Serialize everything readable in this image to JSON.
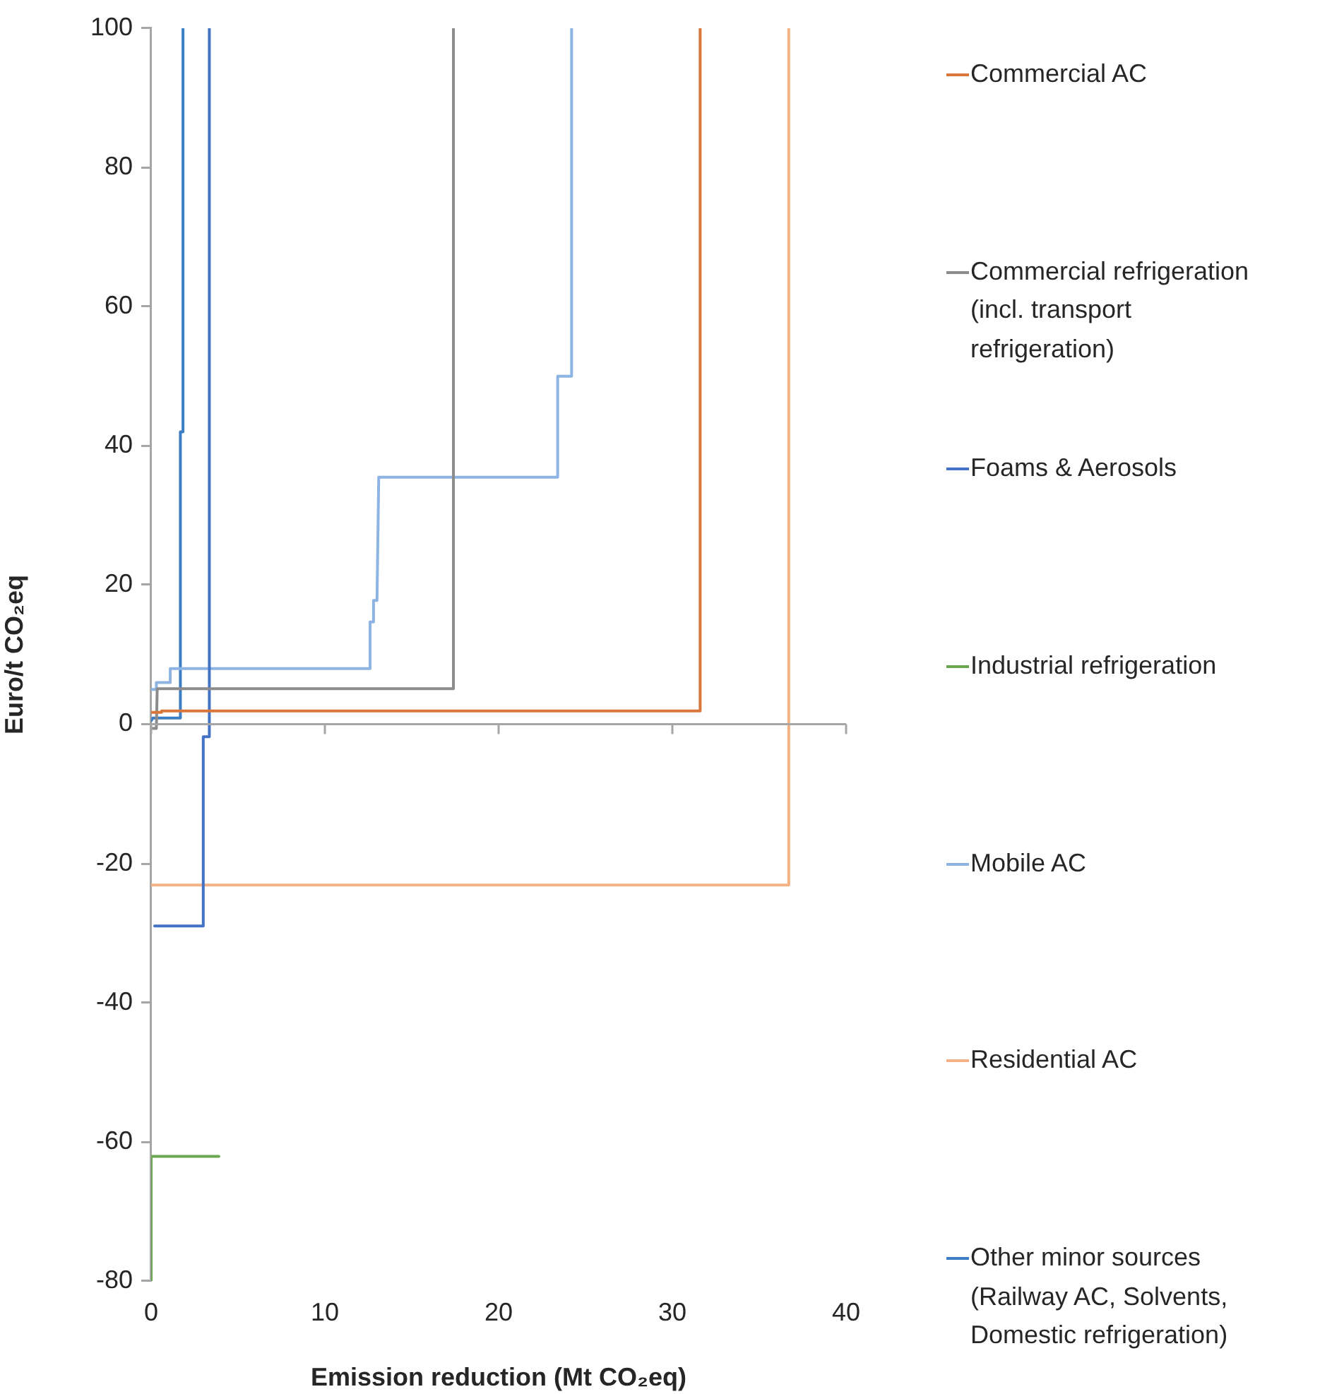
{
  "chart_data": {
    "type": "line",
    "xlabel": "Emission reduction (Mt CO₂eq)",
    "ylabel": "Euro/t CO₂eq",
    "xlim": [
      0,
      40
    ],
    "xticks": [
      0,
      10,
      20,
      30,
      40
    ],
    "ylim": [
      -80,
      100
    ],
    "yticks": [
      -80,
      -60,
      -40,
      -20,
      0,
      20,
      40,
      60,
      80,
      100
    ],
    "legend": "right",
    "series": [
      {
        "name": "Commercial AC",
        "color": "#d9773a",
        "x": [
          0,
          0.6,
          0.6,
          31.6,
          31.6
        ],
        "values": [
          1.7,
          1.7,
          1.9,
          1.9,
          100
        ]
      },
      {
        "name": "Commercial refrigeration (incl. transport refrigeration)",
        "color": "#8c8c8c",
        "x": [
          0,
          0.3,
          0.35,
          17.4,
          17.4
        ],
        "values": [
          -0.6,
          -0.6,
          5.1,
          5.1,
          100
        ]
      },
      {
        "name": "Foams & Aerosols",
        "color": "#4472c4",
        "x": [
          0.2,
          3.0,
          3.0,
          3.35,
          3.35
        ],
        "values": [
          -29,
          -29,
          -1.8,
          -1.8,
          100
        ]
      },
      {
        "name": "Industrial refrigeration",
        "color": "#6aa84f",
        "x": [
          0,
          0,
          3.9
        ],
        "values": [
          -80,
          -62.1,
          -62.1
        ]
      },
      {
        "name": "Mobile AC",
        "color": "#8db4e2",
        "x": [
          0,
          0.3,
          0.3,
          1.1,
          1.1,
          12.6,
          12.6,
          12.8,
          12.8,
          13.0,
          13.1,
          23.4,
          23.4,
          24.2,
          24.2
        ],
        "values": [
          5,
          5,
          6,
          6,
          8,
          8,
          14.7,
          14.7,
          17.8,
          17.8,
          35.5,
          35.5,
          50,
          50,
          100
        ]
      },
      {
        "name": "Residential AC",
        "color": "#f4b183",
        "x": [
          0,
          36.7,
          36.7
        ],
        "values": [
          -23.1,
          -23.1,
          100
        ]
      },
      {
        "name": "Other minor sources (Railway AC, Solvents, Domestic refrigeration)",
        "color": "#3c7dc4",
        "x": [
          0,
          0.1,
          1.65,
          1.65,
          1.7,
          1.7,
          1.8,
          1.8,
          1.85,
          1.85
        ],
        "values": [
          0.5,
          0.9,
          0.9,
          6,
          6,
          42,
          42,
          45,
          45,
          100
        ]
      }
    ]
  }
}
